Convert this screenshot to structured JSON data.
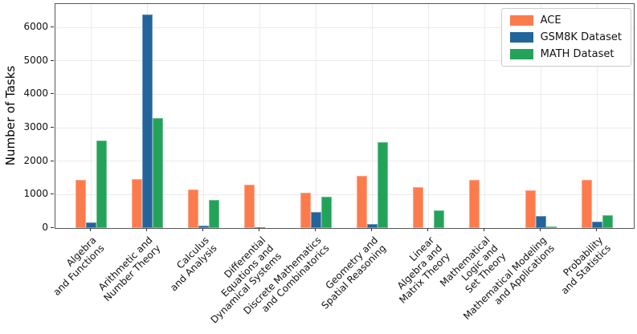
{
  "chart_data": {
    "type": "bar",
    "title": "",
    "xlabel": "",
    "ylabel": "Number of Tasks",
    "ylim": [
      0,
      6700
    ],
    "yticks": [
      0,
      1000,
      2000,
      3000,
      4000,
      5000,
      6000
    ],
    "grid": "both",
    "legend_position": "upper right",
    "categories": [
      [
        "Algebra",
        "and Functions"
      ],
      [
        "Arithmetic and",
        "Number Theory"
      ],
      [
        "Calculus",
        "and Analysis"
      ],
      [
        "Differential",
        "Equations and",
        "Dynamical Systems"
      ],
      [
        "Discrete Mathematics",
        "and Combinatorics"
      ],
      [
        "Geometry and",
        "Spatial Reasoning"
      ],
      [
        "Linear",
        "Algebra and",
        "Matrix Theory"
      ],
      [
        "Mathematical",
        "Logic and",
        "Set Theory"
      ],
      [
        "Mathematical Modeling",
        "and Applications"
      ],
      [
        "Probability",
        "and Statistics"
      ]
    ],
    "series": [
      {
        "name": "ACE",
        "color": "#FC7B4D",
        "values": [
          1430,
          1460,
          1150,
          1300,
          1050,
          1550,
          1220,
          1440,
          1130,
          1450
        ]
      },
      {
        "name": "GSM8K Dataset",
        "color": "#23649B",
        "values": [
          180,
          6380,
          70,
          25,
          490,
          110,
          0,
          0,
          370,
          200
        ]
      },
      {
        "name": "MATH Dataset",
        "color": "#23A359",
        "values": [
          2620,
          3280,
          840,
          0,
          930,
          2570,
          520,
          0,
          50,
          380
        ]
      }
    ]
  },
  "colors": {
    "grid": "#ebebeb",
    "spine": "#565656",
    "tick": "#333333",
    "legend_border": "#cccccc"
  }
}
